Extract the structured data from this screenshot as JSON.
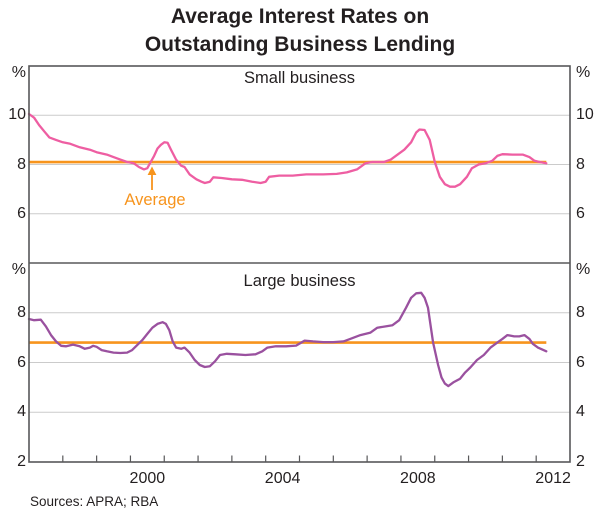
{
  "title": {
    "line1": "Average Interest Rates on",
    "line2": "Outstanding Business Lending"
  },
  "source_note": "Sources: APRA; RBA",
  "colors": {
    "small_business_line": "#ee5ea2",
    "large_business_line": "#9a519f",
    "average_line": "#f7941d",
    "grid": "#cbcbcb",
    "frame": "#58585a",
    "text": "#231f20"
  },
  "chart_data": {
    "type": "line",
    "title": "Average Interest Rates on Outstanding Business Lending",
    "x_axis": {
      "start": 1997.0,
      "end": 2013.0,
      "tick_years": [
        1998,
        1999,
        2000,
        2001,
        2002,
        2003,
        2004,
        2005,
        2006,
        2007,
        2008,
        2009,
        2010,
        2011,
        2012
      ],
      "labeled_years": [
        "2000",
        "2004",
        "2008",
        "2012"
      ],
      "labeled_year_values": [
        2000,
        2004,
        2008,
        2012
      ]
    },
    "panels": [
      {
        "title": "Small business",
        "unit": "%",
        "ylim": [
          4,
          12
        ],
        "y_ticks": [
          {
            "value": 10,
            "label": "10",
            "grid": true
          },
          {
            "value": 8,
            "label": "8",
            "grid": true
          },
          {
            "value": 6,
            "label": "6",
            "grid": true
          }
        ],
        "average": {
          "label": "Average",
          "value": 8.1
        },
        "series": {
          "name": "Small business average interest rate",
          "color": "#ee5ea2",
          "points": [
            [
              1997.0,
              10.05
            ],
            [
              1997.15,
              9.9
            ],
            [
              1997.3,
              9.6
            ],
            [
              1997.45,
              9.35
            ],
            [
              1997.6,
              9.1
            ],
            [
              1997.8,
              9.0
            ],
            [
              1998.0,
              8.9
            ],
            [
              1998.2,
              8.85
            ],
            [
              1998.5,
              8.7
            ],
            [
              1998.8,
              8.6
            ],
            [
              1999.0,
              8.5
            ],
            [
              1999.3,
              8.4
            ],
            [
              1999.5,
              8.3
            ],
            [
              1999.7,
              8.2
            ],
            [
              1999.9,
              8.1
            ],
            [
              2000.1,
              8.05
            ],
            [
              2000.25,
              7.9
            ],
            [
              2000.4,
              7.8
            ],
            [
              2000.5,
              7.85
            ],
            [
              2000.6,
              8.1
            ],
            [
              2000.7,
              8.35
            ],
            [
              2000.8,
              8.65
            ],
            [
              2000.9,
              8.8
            ],
            [
              2001.0,
              8.9
            ],
            [
              2001.1,
              8.88
            ],
            [
              2001.2,
              8.6
            ],
            [
              2001.35,
              8.2
            ],
            [
              2001.5,
              7.95
            ],
            [
              2001.6,
              7.9
            ],
            [
              2001.75,
              7.6
            ],
            [
              2001.95,
              7.4
            ],
            [
              2002.1,
              7.3
            ],
            [
              2002.2,
              7.25
            ],
            [
              2002.35,
              7.3
            ],
            [
              2002.45,
              7.48
            ],
            [
              2002.7,
              7.45
            ],
            [
              2003.0,
              7.4
            ],
            [
              2003.3,
              7.38
            ],
            [
              2003.6,
              7.3
            ],
            [
              2003.85,
              7.25
            ],
            [
              2004.0,
              7.3
            ],
            [
              2004.1,
              7.5
            ],
            [
              2004.4,
              7.55
            ],
            [
              2004.8,
              7.55
            ],
            [
              2005.2,
              7.6
            ],
            [
              2005.7,
              7.6
            ],
            [
              2006.1,
              7.62
            ],
            [
              2006.4,
              7.68
            ],
            [
              2006.7,
              7.8
            ],
            [
              2006.95,
              8.05
            ],
            [
              2007.15,
              8.1
            ],
            [
              2007.5,
              8.1
            ],
            [
              2007.7,
              8.2
            ],
            [
              2007.9,
              8.4
            ],
            [
              2008.1,
              8.6
            ],
            [
              2008.3,
              8.9
            ],
            [
              2008.45,
              9.3
            ],
            [
              2008.55,
              9.42
            ],
            [
              2008.7,
              9.4
            ],
            [
              2008.85,
              9.0
            ],
            [
              2009.0,
              8.1
            ],
            [
              2009.15,
              7.5
            ],
            [
              2009.3,
              7.2
            ],
            [
              2009.45,
              7.1
            ],
            [
              2009.6,
              7.1
            ],
            [
              2009.75,
              7.2
            ],
            [
              2009.95,
              7.5
            ],
            [
              2010.1,
              7.85
            ],
            [
              2010.3,
              8.0
            ],
            [
              2010.5,
              8.05
            ],
            [
              2010.7,
              8.15
            ],
            [
              2010.85,
              8.35
            ],
            [
              2011.0,
              8.42
            ],
            [
              2011.3,
              8.4
            ],
            [
              2011.6,
              8.4
            ],
            [
              2011.8,
              8.3
            ],
            [
              2011.95,
              8.15
            ],
            [
              2012.1,
              8.1
            ],
            [
              2012.3,
              8.05
            ]
          ]
        }
      },
      {
        "title": "Large business",
        "unit": "%",
        "ylim": [
          2,
          10
        ],
        "y_ticks": [
          {
            "value": 8,
            "label": "8",
            "grid": true
          },
          {
            "value": 6,
            "label": "6",
            "grid": true
          },
          {
            "value": 4,
            "label": "4",
            "grid": true
          },
          {
            "value": 2,
            "label": "2",
            "grid": false
          }
        ],
        "average": {
          "label": "Average",
          "value": 6.8
        },
        "series": {
          "name": "Large business average interest rate",
          "color": "#9a519f",
          "points": [
            [
              1997.0,
              7.75
            ],
            [
              1997.15,
              7.7
            ],
            [
              1997.35,
              7.72
            ],
            [
              1997.5,
              7.45
            ],
            [
              1997.65,
              7.1
            ],
            [
              1997.8,
              6.85
            ],
            [
              1997.95,
              6.67
            ],
            [
              1998.1,
              6.65
            ],
            [
              1998.3,
              6.72
            ],
            [
              1998.5,
              6.65
            ],
            [
              1998.65,
              6.55
            ],
            [
              1998.8,
              6.6
            ],
            [
              1998.9,
              6.67
            ],
            [
              1999.0,
              6.63
            ],
            [
              1999.15,
              6.5
            ],
            [
              1999.3,
              6.45
            ],
            [
              1999.5,
              6.4
            ],
            [
              1999.7,
              6.38
            ],
            [
              1999.9,
              6.4
            ],
            [
              2000.05,
              6.5
            ],
            [
              2000.2,
              6.7
            ],
            [
              2000.35,
              6.9
            ],
            [
              2000.5,
              7.15
            ],
            [
              2000.65,
              7.4
            ],
            [
              2000.8,
              7.55
            ],
            [
              2000.95,
              7.62
            ],
            [
              2001.05,
              7.55
            ],
            [
              2001.15,
              7.3
            ],
            [
              2001.25,
              6.85
            ],
            [
              2001.35,
              6.6
            ],
            [
              2001.5,
              6.55
            ],
            [
              2001.6,
              6.6
            ],
            [
              2001.75,
              6.4
            ],
            [
              2001.9,
              6.1
            ],
            [
              2002.05,
              5.9
            ],
            [
              2002.2,
              5.82
            ],
            [
              2002.35,
              5.85
            ],
            [
              2002.5,
              6.05
            ],
            [
              2002.65,
              6.3
            ],
            [
              2002.85,
              6.35
            ],
            [
              2003.1,
              6.33
            ],
            [
              2003.4,
              6.3
            ],
            [
              2003.7,
              6.33
            ],
            [
              2003.9,
              6.45
            ],
            [
              2004.05,
              6.6
            ],
            [
              2004.3,
              6.65
            ],
            [
              2004.6,
              6.65
            ],
            [
              2004.9,
              6.68
            ],
            [
              2005.15,
              6.88
            ],
            [
              2005.4,
              6.85
            ],
            [
              2005.7,
              6.82
            ],
            [
              2006.0,
              6.82
            ],
            [
              2006.3,
              6.85
            ],
            [
              2006.5,
              6.95
            ],
            [
              2006.8,
              7.1
            ],
            [
              2007.1,
              7.2
            ],
            [
              2007.3,
              7.4
            ],
            [
              2007.55,
              7.45
            ],
            [
              2007.75,
              7.5
            ],
            [
              2007.95,
              7.7
            ],
            [
              2008.15,
              8.2
            ],
            [
              2008.3,
              8.6
            ],
            [
              2008.45,
              8.78
            ],
            [
              2008.6,
              8.8
            ],
            [
              2008.7,
              8.6
            ],
            [
              2008.8,
              8.2
            ],
            [
              2008.95,
              6.8
            ],
            [
              2009.1,
              5.9
            ],
            [
              2009.2,
              5.4
            ],
            [
              2009.3,
              5.15
            ],
            [
              2009.4,
              5.05
            ],
            [
              2009.55,
              5.2
            ],
            [
              2009.75,
              5.35
            ],
            [
              2009.9,
              5.6
            ],
            [
              2010.05,
              5.8
            ],
            [
              2010.25,
              6.1
            ],
            [
              2010.45,
              6.3
            ],
            [
              2010.65,
              6.6
            ],
            [
              2010.85,
              6.8
            ],
            [
              2011.0,
              6.95
            ],
            [
              2011.15,
              7.1
            ],
            [
              2011.35,
              7.05
            ],
            [
              2011.5,
              7.05
            ],
            [
              2011.65,
              7.1
            ],
            [
              2011.8,
              6.95
            ],
            [
              2011.9,
              6.75
            ],
            [
              2012.05,
              6.6
            ],
            [
              2012.3,
              6.45
            ]
          ]
        }
      }
    ]
  }
}
